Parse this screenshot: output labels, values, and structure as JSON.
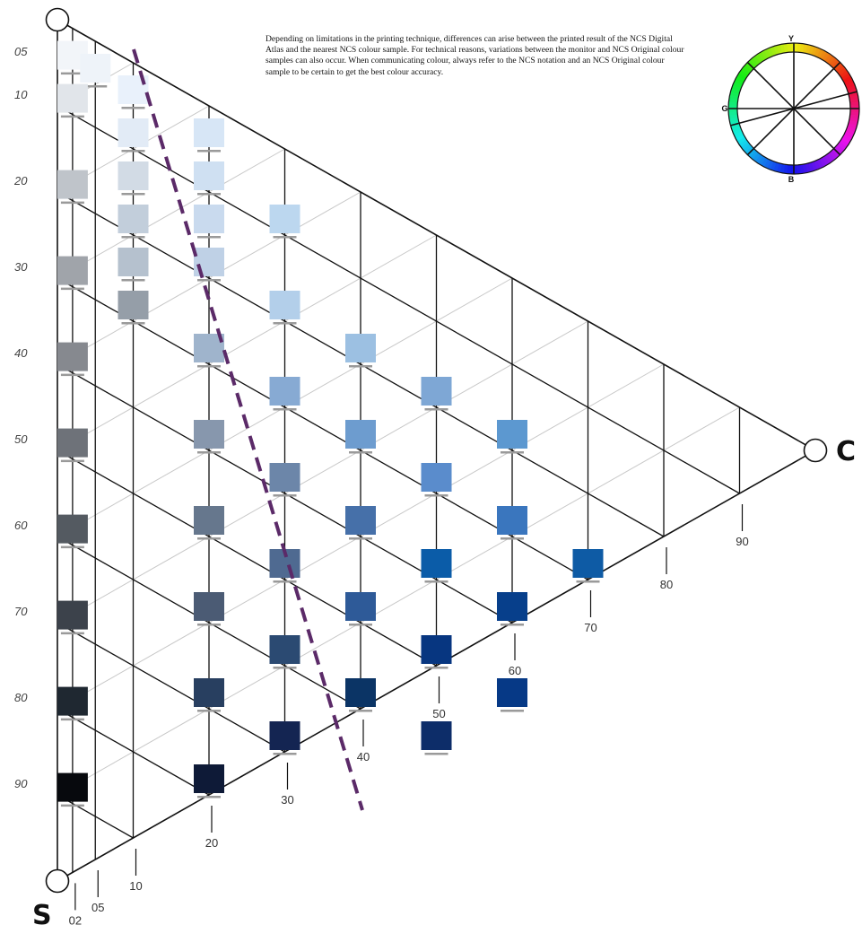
{
  "notice": "Depending on limitations in the printing technique, differences can arise between the printed result of the NCS Digital Atlas and the nearest NCS colour sample. For technical reasons, variations between the monitor and NCS Original colour samples can also occur. When communicating colour, always refer to the NCS notation and an NCS Original colour sample to be certain to get the best colour accuracy.",
  "corners": {
    "s": "S",
    "c": "C"
  },
  "chromaticness_labels": [
    "02",
    "05",
    "10",
    "20",
    "30",
    "40",
    "50",
    "60",
    "70",
    "80",
    "90"
  ],
  "blackness_labels": [
    "05",
    "10",
    "20",
    "30",
    "40",
    "50",
    "60",
    "70",
    "80",
    "90"
  ],
  "hue_wheel": {
    "y": "Y",
    "g": "G",
    "b": "B"
  },
  "samples": [
    {
      "c": 2,
      "s": 5,
      "color": "#f2f5f9"
    },
    {
      "c": 5,
      "s": 5,
      "color": "#eef3f9"
    },
    {
      "c": 10,
      "s": 5,
      "color": "#e9f1fb"
    },
    {
      "c": 2,
      "s": 10,
      "color": "#e1e5ea"
    },
    {
      "c": 10,
      "s": 10,
      "color": "#e2ebf6"
    },
    {
      "c": 20,
      "s": 5,
      "color": "#d7e6f6"
    },
    {
      "c": 10,
      "s": 15,
      "color": "#d2dbe5"
    },
    {
      "c": 20,
      "s": 10,
      "color": "#cfe0f2"
    },
    {
      "c": 20,
      "s": 15,
      "color": "#c9daee"
    },
    {
      "c": 10,
      "s": 20,
      "color": "#c2cedb"
    },
    {
      "c": 20,
      "s": 20,
      "color": "#bfd1e6"
    },
    {
      "c": 30,
      "s": 10,
      "color": "#bcd7ef"
    },
    {
      "c": 2,
      "s": 20,
      "color": "#bfc4ca"
    },
    {
      "c": 10,
      "s": 25,
      "color": "#b5c1ce"
    },
    {
      "c": 30,
      "s": 20,
      "color": "#b3cfea"
    },
    {
      "c": 20,
      "s": 30,
      "color": "#9fb4cc"
    },
    {
      "c": 40,
      "s": 20,
      "color": "#9cc0e2"
    },
    {
      "c": 2,
      "s": 30,
      "color": "#a0a4aa"
    },
    {
      "c": 10,
      "s": 30,
      "color": "#959ea8"
    },
    {
      "c": 30,
      "s": 30,
      "color": "#87aad3"
    },
    {
      "c": 20,
      "s": 40,
      "color": "#8797ad"
    },
    {
      "c": 40,
      "s": 30,
      "color": "#6d9ccf"
    },
    {
      "c": 50,
      "s": 20,
      "color": "#7ea7d5"
    },
    {
      "c": 2,
      "s": 40,
      "color": "#86898f"
    },
    {
      "c": 60,
      "s": 20,
      "color": "#5c98d0"
    },
    {
      "c": 30,
      "s": 40,
      "color": "#6c86a9"
    },
    {
      "c": 50,
      "s": 30,
      "color": "#5a8ccc"
    },
    {
      "c": 20,
      "s": 50,
      "color": "#66778d"
    },
    {
      "c": 40,
      "s": 40,
      "color": "#4670a9"
    },
    {
      "c": 60,
      "s": 30,
      "color": "#3a76be"
    },
    {
      "c": 2,
      "s": 50,
      "color": "#6e7279"
    },
    {
      "c": 30,
      "s": 50,
      "color": "#4f6a91"
    },
    {
      "c": 50,
      "s": 40,
      "color": "#0b5ca8"
    },
    {
      "c": 70,
      "s": 30,
      "color": "#0e5ba5"
    },
    {
      "c": 20,
      "s": 60,
      "color": "#4b5b74"
    },
    {
      "c": 40,
      "s": 50,
      "color": "#2e5a98"
    },
    {
      "c": 60,
      "s": 40,
      "color": "#073f8b"
    },
    {
      "c": 2,
      "s": 60,
      "color": "#545a61"
    },
    {
      "c": 30,
      "s": 60,
      "color": "#2b4a72"
    },
    {
      "c": 50,
      "s": 50,
      "color": "#073680"
    },
    {
      "c": 60,
      "s": 50,
      "color": "#063986"
    },
    {
      "c": 20,
      "s": 70,
      "color": "#283f60"
    },
    {
      "c": 40,
      "s": 60,
      "color": "#0b3465"
    },
    {
      "c": 50,
      "s": 60,
      "color": "#0d2d69"
    },
    {
      "c": 2,
      "s": 70,
      "color": "#3c424b"
    },
    {
      "c": 30,
      "s": 70,
      "color": "#142552"
    },
    {
      "c": 20,
      "s": 80,
      "color": "#0e1a37"
    },
    {
      "c": 2,
      "s": 80,
      "color": "#1f2831"
    },
    {
      "c": 2,
      "s": 90,
      "color": "#07090d"
    }
  ]
}
